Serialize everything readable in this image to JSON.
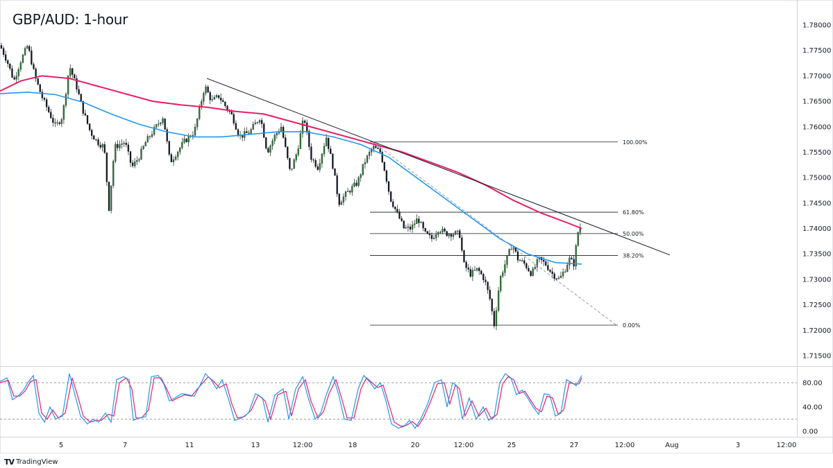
{
  "chart_title": "GBP/AUD: 1-hour",
  "brand": {
    "logo": "TV",
    "name": "TradingView"
  },
  "colors": {
    "bull": "#2e7d32",
    "bear": "#131722",
    "ma_fast": "#2196f3",
    "ma_slow": "#e91e63",
    "stoch_k": "#2196f3",
    "stoch_d": "#e91e63",
    "trend": "#131722",
    "grid": "#e0e3eb"
  },
  "chart_data": [
    {
      "type": "candlestick",
      "title": "GBP/AUD: 1-hour",
      "ylim": [
        1.715,
        1.782
      ],
      "y_ticks": [
        "1.78000",
        "1.77500",
        "1.77000",
        "1.76500",
        "1.76000",
        "1.75500",
        "1.75000",
        "1.74500",
        "1.74000",
        "1.73500",
        "1.73000",
        "1.72500",
        "1.72000",
        "1.71500"
      ],
      "x_ticks": [
        "5",
        "7",
        "11",
        "13",
        "12:00",
        "18",
        "20",
        "12:00",
        "25",
        "27",
        "12:00",
        "Aug",
        "3",
        "12:00"
      ],
      "close_path": [
        [
          0,
          1.776
        ],
        [
          10,
          1.773
        ],
        [
          20,
          1.769
        ],
        [
          30,
          1.773
        ],
        [
          40,
          1.776
        ],
        [
          50,
          1.77
        ],
        [
          60,
          1.766
        ],
        [
          70,
          1.763
        ],
        [
          80,
          1.76
        ],
        [
          90,
          1.762
        ],
        [
          100,
          1.772
        ],
        [
          110,
          1.768
        ],
        [
          120,
          1.763
        ],
        [
          130,
          1.759
        ],
        [
          140,
          1.757
        ],
        [
          150,
          1.756
        ],
        [
          157,
          1.744
        ],
        [
          165,
          1.756
        ],
        [
          180,
          1.757
        ],
        [
          190,
          1.752
        ],
        [
          200,
          1.754
        ],
        [
          210,
          1.757
        ],
        [
          225,
          1.76
        ],
        [
          235,
          1.762
        ],
        [
          245,
          1.753
        ],
        [
          255,
          1.755
        ],
        [
          265,
          1.757
        ],
        [
          280,
          1.759
        ],
        [
          295,
          1.768
        ],
        [
          305,
          1.765
        ],
        [
          315,
          1.766
        ],
        [
          325,
          1.764
        ],
        [
          335,
          1.762
        ],
        [
          345,
          1.758
        ],
        [
          360,
          1.759
        ],
        [
          375,
          1.762
        ],
        [
          385,
          1.755
        ],
        [
          395,
          1.758
        ],
        [
          405,
          1.76
        ],
        [
          418,
          1.751
        ],
        [
          428,
          1.755
        ],
        [
          438,
          1.762
        ],
        [
          448,
          1.754
        ],
        [
          458,
          1.752
        ],
        [
          470,
          1.758
        ],
        [
          480,
          1.752
        ],
        [
          488,
          1.745
        ],
        [
          500,
          1.747
        ],
        [
          515,
          1.749
        ],
        [
          525,
          1.753
        ],
        [
          537,
          1.756
        ],
        [
          548,
          1.755
        ],
        [
          555,
          1.751
        ],
        [
          562,
          1.746
        ],
        [
          572,
          1.743
        ],
        [
          582,
          1.74
        ],
        [
          592,
          1.74
        ],
        [
          602,
          1.742
        ],
        [
          612,
          1.739
        ],
        [
          622,
          1.738
        ],
        [
          632,
          1.74
        ],
        [
          642,
          1.739
        ],
        [
          652,
          1.739
        ],
        [
          662,
          1.739
        ],
        [
          668,
          1.733
        ],
        [
          678,
          1.731
        ],
        [
          688,
          1.732
        ],
        [
          698,
          1.73
        ],
        [
          706,
          1.726
        ],
        [
          712,
          1.721
        ],
        [
          720,
          1.73
        ],
        [
          730,
          1.734
        ],
        [
          738,
          1.737
        ],
        [
          746,
          1.734
        ],
        [
          756,
          1.733
        ],
        [
          766,
          1.731
        ],
        [
          776,
          1.734
        ],
        [
          786,
          1.733
        ],
        [
          796,
          1.731
        ],
        [
          806,
          1.73
        ],
        [
          814,
          1.732
        ],
        [
          820,
          1.734
        ],
        [
          827,
          1.733
        ],
        [
          832,
          1.739
        ],
        [
          838,
          1.741
        ]
      ],
      "ma_fast_path": [
        [
          0,
          1.7665
        ],
        [
          40,
          1.7668
        ],
        [
          80,
          1.7663
        ],
        [
          120,
          1.7648
        ],
        [
          160,
          1.7625
        ],
        [
          200,
          1.7605
        ],
        [
          240,
          1.759
        ],
        [
          280,
          1.758
        ],
        [
          320,
          1.758
        ],
        [
          360,
          1.7585
        ],
        [
          400,
          1.759
        ],
        [
          440,
          1.759
        ],
        [
          480,
          1.758
        ],
        [
          520,
          1.7565
        ],
        [
          560,
          1.754
        ],
        [
          600,
          1.75
        ],
        [
          640,
          1.746
        ],
        [
          680,
          1.742
        ],
        [
          720,
          1.738
        ],
        [
          760,
          1.735
        ],
        [
          800,
          1.7333
        ],
        [
          838,
          1.733
        ]
      ],
      "ma_slow_path": [
        [
          0,
          1.767
        ],
        [
          30,
          1.769
        ],
        [
          60,
          1.77
        ],
        [
          100,
          1.7695
        ],
        [
          140,
          1.768
        ],
        [
          180,
          1.7665
        ],
        [
          220,
          1.765
        ],
        [
          260,
          1.7643
        ],
        [
          300,
          1.7638
        ],
        [
          340,
          1.763
        ],
        [
          380,
          1.7625
        ],
        [
          420,
          1.761
        ],
        [
          460,
          1.7595
        ],
        [
          500,
          1.758
        ],
        [
          540,
          1.7565
        ],
        [
          580,
          1.755
        ],
        [
          620,
          1.753
        ],
        [
          660,
          1.751
        ],
        [
          700,
          1.7485
        ],
        [
          740,
          1.7455
        ],
        [
          780,
          1.743
        ],
        [
          810,
          1.7415
        ],
        [
          838,
          1.74
        ]
      ],
      "trendline": [
        [
          298,
          1.7695
        ],
        [
          965,
          1.7348
        ]
      ],
      "dashed_line": [
        [
          537,
          1.757
        ],
        [
          888,
          1.721
        ]
      ],
      "fib_x_range": [
        533,
        890
      ],
      "fib_levels": [
        {
          "label": "100.00%",
          "price": 1.757
        },
        {
          "label": "61.80%",
          "price": 1.7432
        },
        {
          "label": "50.00%",
          "price": 1.739
        },
        {
          "label": "38.20%",
          "price": 1.7347
        },
        {
          "label": "0.00%",
          "price": 1.721
        }
      ]
    },
    {
      "type": "line",
      "name": "stochastic",
      "ylim": [
        0,
        100
      ],
      "y_ticks": [
        "80.00",
        "40.00",
        "0.00"
      ],
      "levels": [
        80,
        20
      ],
      "k_path": [
        [
          0,
          82
        ],
        [
          10,
          88
        ],
        [
          18,
          52
        ],
        [
          26,
          58
        ],
        [
          34,
          68
        ],
        [
          40,
          80
        ],
        [
          48,
          92
        ],
        [
          56,
          30
        ],
        [
          64,
          15
        ],
        [
          72,
          40
        ],
        [
          80,
          20
        ],
        [
          90,
          25
        ],
        [
          100,
          95
        ],
        [
          108,
          60
        ],
        [
          116,
          25
        ],
        [
          126,
          12
        ],
        [
          134,
          20
        ],
        [
          142,
          15
        ],
        [
          152,
          30
        ],
        [
          160,
          15
        ],
        [
          168,
          85
        ],
        [
          178,
          90
        ],
        [
          186,
          85
        ],
        [
          192,
          18
        ],
        [
          200,
          22
        ],
        [
          210,
          24
        ],
        [
          218,
          90
        ],
        [
          228,
          92
        ],
        [
          236,
          78
        ],
        [
          244,
          50
        ],
        [
          252,
          55
        ],
        [
          262,
          62
        ],
        [
          272,
          60
        ],
        [
          280,
          58
        ],
        [
          290,
          80
        ],
        [
          296,
          95
        ],
        [
          304,
          85
        ],
        [
          312,
          70
        ],
        [
          320,
          85
        ],
        [
          330,
          50
        ],
        [
          338,
          18
        ],
        [
          348,
          22
        ],
        [
          358,
          30
        ],
        [
          368,
          62
        ],
        [
          378,
          55
        ],
        [
          386,
          15
        ],
        [
          396,
          60
        ],
        [
          408,
          70
        ],
        [
          416,
          20
        ],
        [
          426,
          70
        ],
        [
          436,
          90
        ],
        [
          444,
          55
        ],
        [
          454,
          20
        ],
        [
          462,
          30
        ],
        [
          470,
          60
        ],
        [
          480,
          90
        ],
        [
          488,
          60
        ],
        [
          496,
          20
        ],
        [
          506,
          18
        ],
        [
          516,
          70
        ],
        [
          524,
          92
        ],
        [
          532,
          82
        ],
        [
          540,
          70
        ],
        [
          548,
          80
        ],
        [
          556,
          50
        ],
        [
          564,
          12
        ],
        [
          574,
          5
        ],
        [
          582,
          8
        ],
        [
          590,
          18
        ],
        [
          598,
          5
        ],
        [
          606,
          20
        ],
        [
          616,
          45
        ],
        [
          626,
          80
        ],
        [
          636,
          85
        ],
        [
          644,
          40
        ],
        [
          652,
          80
        ],
        [
          658,
          75
        ],
        [
          666,
          20
        ],
        [
          676,
          55
        ],
        [
          686,
          20
        ],
        [
          696,
          40
        ],
        [
          704,
          18
        ],
        [
          712,
          25
        ],
        [
          720,
          80
        ],
        [
          728,
          95
        ],
        [
          736,
          88
        ],
        [
          744,
          60
        ],
        [
          752,
          68
        ],
        [
          760,
          55
        ],
        [
          768,
          40
        ],
        [
          776,
          28
        ],
        [
          784,
          62
        ],
        [
          792,
          60
        ],
        [
          800,
          25
        ],
        [
          808,
          30
        ],
        [
          816,
          85
        ],
        [
          824,
          80
        ],
        [
          830,
          75
        ],
        [
          838,
          92
        ]
      ],
      "d_path": [
        [
          0,
          80
        ],
        [
          12,
          84
        ],
        [
          20,
          58
        ],
        [
          28,
          58
        ],
        [
          36,
          66
        ],
        [
          44,
          82
        ],
        [
          52,
          85
        ],
        [
          60,
          30
        ],
        [
          68,
          20
        ],
        [
          76,
          35
        ],
        [
          84,
          22
        ],
        [
          94,
          30
        ],
        [
          104,
          88
        ],
        [
          112,
          58
        ],
        [
          120,
          25
        ],
        [
          130,
          15
        ],
        [
          138,
          18
        ],
        [
          146,
          18
        ],
        [
          156,
          28
        ],
        [
          164,
          25
        ],
        [
          172,
          80
        ],
        [
          182,
          88
        ],
        [
          190,
          70
        ],
        [
          196,
          22
        ],
        [
          204,
          22
        ],
        [
          214,
          35
        ],
        [
          222,
          88
        ],
        [
          232,
          88
        ],
        [
          240,
          70
        ],
        [
          248,
          50
        ],
        [
          256,
          55
        ],
        [
          266,
          60
        ],
        [
          276,
          58
        ],
        [
          286,
          72
        ],
        [
          300,
          90
        ],
        [
          308,
          82
        ],
        [
          316,
          72
        ],
        [
          326,
          78
        ],
        [
          334,
          45
        ],
        [
          342,
          22
        ],
        [
          352,
          24
        ],
        [
          362,
          35
        ],
        [
          372,
          60
        ],
        [
          382,
          50
        ],
        [
          390,
          20
        ],
        [
          400,
          60
        ],
        [
          412,
          66
        ],
        [
          420,
          25
        ],
        [
          430,
          70
        ],
        [
          440,
          85
        ],
        [
          448,
          50
        ],
        [
          458,
          22
        ],
        [
          466,
          32
        ],
        [
          474,
          62
        ],
        [
          484,
          85
        ],
        [
          492,
          55
        ],
        [
          500,
          22
        ],
        [
          510,
          22
        ],
        [
          520,
          70
        ],
        [
          528,
          88
        ],
        [
          536,
          80
        ],
        [
          544,
          72
        ],
        [
          552,
          76
        ],
        [
          560,
          45
        ],
        [
          568,
          15
        ],
        [
          578,
          8
        ],
        [
          586,
          10
        ],
        [
          594,
          16
        ],
        [
          602,
          8
        ],
        [
          610,
          22
        ],
        [
          620,
          48
        ],
        [
          630,
          78
        ],
        [
          640,
          80
        ],
        [
          648,
          45
        ],
        [
          656,
          76
        ],
        [
          662,
          70
        ],
        [
          670,
          25
        ],
        [
          680,
          50
        ],
        [
          690,
          25
        ],
        [
          700,
          38
        ],
        [
          708,
          20
        ],
        [
          716,
          28
        ],
        [
          724,
          78
        ],
        [
          732,
          90
        ],
        [
          740,
          85
        ],
        [
          748,
          62
        ],
        [
          756,
          66
        ],
        [
          764,
          52
        ],
        [
          772,
          38
        ],
        [
          780,
          32
        ],
        [
          788,
          58
        ],
        [
          796,
          55
        ],
        [
          804,
          28
        ],
        [
          812,
          35
        ],
        [
          820,
          80
        ],
        [
          828,
          78
        ],
        [
          834,
          78
        ],
        [
          838,
          88
        ]
      ]
    }
  ]
}
